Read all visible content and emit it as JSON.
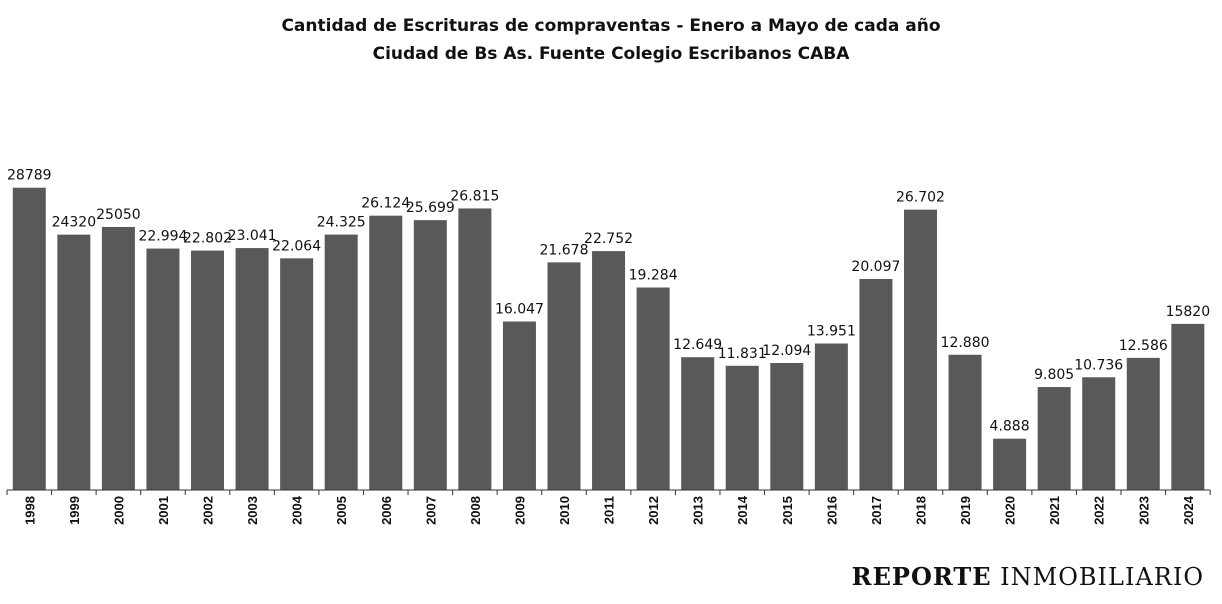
{
  "chart_data": {
    "type": "bar",
    "title": "Cantidad de Escrituras de compraventas - Enero a Mayo de cada año",
    "subtitle": "Ciudad de Bs As. Fuente Colegio Escribanos CABA",
    "xlabel": "",
    "ylabel": "",
    "ylim": [
      0,
      30000
    ],
    "grid": false,
    "bar_color": "#595959",
    "categories": [
      "1998",
      "1999",
      "2000",
      "2001",
      "2002",
      "2003",
      "2004",
      "2005",
      "2006",
      "2007",
      "2008",
      "2009",
      "2010",
      "2011",
      "2012",
      "2013",
      "2014",
      "2015",
      "2016",
      "2017",
      "2018",
      "2019",
      "2020",
      "2021",
      "2022",
      "2023",
      "2024"
    ],
    "values": [
      28789,
      24320,
      25050,
      22994,
      22802,
      23041,
      22064,
      24325,
      26124,
      25699,
      26815,
      16047,
      21678,
      22752,
      19284,
      12649,
      11831,
      12094,
      13951,
      20097,
      26702,
      12880,
      4888,
      9805,
      10736,
      12586,
      15820
    ],
    "data_labels": [
      "28789",
      "24320",
      "25050",
      "22.994",
      "22.802",
      "23.041",
      "22.064",
      "24.325",
      "26.124",
      "25.699",
      "26.815",
      "16.047",
      "21.678",
      "22.752",
      "19.284",
      "12.649",
      "11.831",
      "12.094",
      "13.951",
      "20.097",
      "26.702",
      "12.880",
      "4.888",
      "9.805",
      "10.736",
      "12.586",
      "15820"
    ]
  },
  "watermark": {
    "bold": "REPORTE",
    "regular": "INMOBILIARIO"
  }
}
